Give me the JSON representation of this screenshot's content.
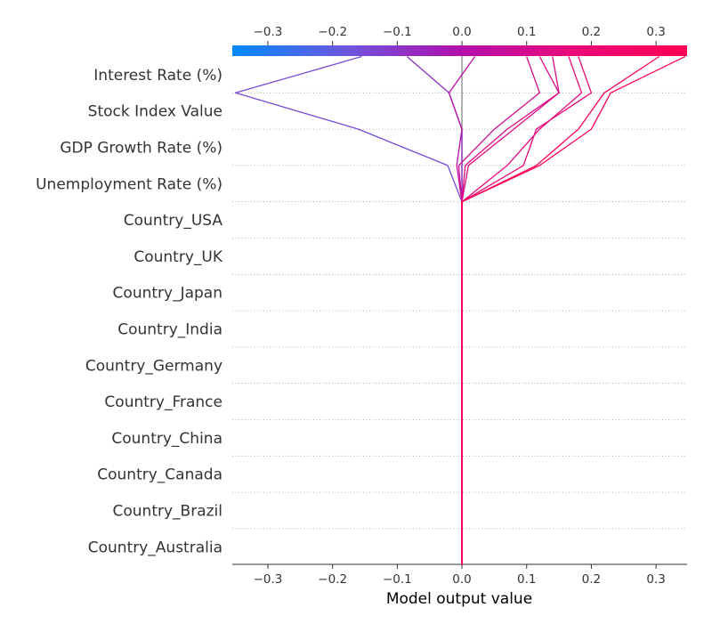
{
  "chart_data": {
    "type": "decision_plot",
    "xlabel": "Model output value",
    "xlim": [
      -0.355,
      0.348
    ],
    "x_ticks": [
      -0.3,
      -0.2,
      -0.1,
      0.0,
      0.1,
      0.2,
      0.3
    ],
    "x_tick_labels": [
      "−0.3",
      "−0.2",
      "−0.1",
      "0.0",
      "0.1",
      "0.2",
      "0.3"
    ],
    "base_value": 0.0,
    "features": [
      "Interest Rate (%)",
      "Stock Index Value",
      "GDP Growth Rate (%)",
      "Unemployment Rate (%)",
      "Country_USA",
      "Country_UK",
      "Country_Japan",
      "Country_India",
      "Country_Germany",
      "Country_France",
      "Country_China",
      "Country_Canada",
      "Country_Brazil",
      "Country_Australia"
    ],
    "colormap": [
      "#008afb",
      "#6d56de",
      "#b10fad",
      "#ea0a7a",
      "#ff0052"
    ],
    "samples": [
      {
        "values": [
          -0.155,
          -0.35,
          -0.16,
          -0.022,
          0.0,
          0.0,
          0.0,
          0.0,
          0.0,
          0.0,
          0.0,
          0.0,
          0.0,
          0.0,
          0.0
        ]
      },
      {
        "values": [
          -0.085,
          -0.02,
          0.0,
          0.0,
          0.0,
          0.0,
          0.0,
          0.0,
          0.0,
          0.0,
          0.0,
          0.0,
          0.0,
          0.0,
          0.0
        ]
      },
      {
        "values": [
          0.02,
          -0.02,
          0.0,
          -0.008,
          0.0,
          0.0,
          0.0,
          0.0,
          0.0,
          0.0,
          0.0,
          0.0,
          0.0,
          0.0,
          0.0
        ]
      },
      {
        "values": [
          0.1,
          0.12,
          0.05,
          -0.005,
          0.0,
          0.0,
          0.0,
          0.0,
          0.0,
          0.0,
          0.0,
          0.0,
          0.0,
          0.0,
          0.0
        ]
      },
      {
        "values": [
          0.12,
          0.15,
          0.07,
          0.005,
          0.0,
          0.0,
          0.0,
          0.0,
          0.0,
          0.0,
          0.0,
          0.0,
          0.0,
          0.0,
          0.0
        ]
      },
      {
        "values": [
          0.14,
          0.15,
          0.08,
          0.01,
          0.0,
          0.0,
          0.0,
          0.0,
          0.0,
          0.0,
          0.0,
          0.0,
          0.0,
          0.0,
          0.0
        ]
      },
      {
        "values": [
          0.165,
          0.185,
          0.12,
          0.07,
          0.0,
          0.0,
          0.0,
          0.0,
          0.0,
          0.0,
          0.0,
          0.0,
          0.0,
          0.0,
          0.0
        ]
      },
      {
        "values": [
          0.18,
          0.2,
          0.115,
          0.095,
          0.0,
          0.0,
          0.0,
          0.0,
          0.0,
          0.0,
          0.0,
          0.0,
          0.0,
          0.0,
          0.0
        ]
      },
      {
        "values": [
          0.305,
          0.22,
          0.18,
          0.115,
          0.0,
          0.0,
          0.0,
          0.0,
          0.0,
          0.0,
          0.0,
          0.0,
          0.0,
          0.0,
          0.0
        ]
      },
      {
        "values": [
          0.345,
          0.23,
          0.2,
          0.12,
          0.0,
          0.0,
          0.0,
          0.0,
          0.0,
          0.0,
          0.0,
          0.0,
          0.0,
          0.0,
          0.0
        ]
      }
    ]
  }
}
